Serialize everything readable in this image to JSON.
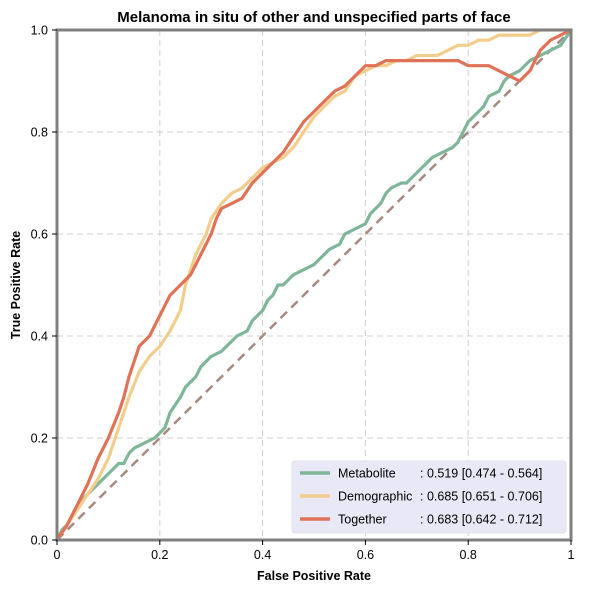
{
  "chart_data": {
    "type": "line",
    "title": "Melanoma in situ of other and unspecified parts of face",
    "xlabel": "False Positive Rate",
    "ylabel": "True Positive Rate",
    "xlim": [
      0,
      1
    ],
    "ylim": [
      0,
      1
    ],
    "xticks": [
      "0",
      "0.2",
      "0.4",
      "0.6",
      "0.8",
      "1"
    ],
    "yticks": [
      "0.0",
      "0.2",
      "0.4",
      "0.6",
      "0.8",
      "1.0"
    ],
    "grid": true,
    "legend_position": "bottom-right",
    "chance_line": {
      "x": [
        0,
        1
      ],
      "y": [
        0,
        1
      ],
      "color": "#a68a80"
    },
    "series": [
      {
        "name": "Metabolite",
        "auc": ": 0.519 [0.474 - 0.564]",
        "color": "#7fb69a",
        "x": [
          0,
          0.01,
          0.02,
          0.03,
          0.05,
          0.07,
          0.09,
          0.1,
          0.12,
          0.13,
          0.14,
          0.15,
          0.17,
          0.19,
          0.2,
          0.21,
          0.22,
          0.24,
          0.25,
          0.27,
          0.28,
          0.3,
          0.32,
          0.33,
          0.35,
          0.37,
          0.38,
          0.4,
          0.41,
          0.42,
          0.43,
          0.44,
          0.45,
          0.46,
          0.48,
          0.5,
          0.51,
          0.53,
          0.55,
          0.56,
          0.58,
          0.6,
          0.61,
          0.63,
          0.64,
          0.65,
          0.67,
          0.68,
          0.7,
          0.72,
          0.73,
          0.75,
          0.77,
          0.78,
          0.79,
          0.8,
          0.81,
          0.82,
          0.83,
          0.84,
          0.86,
          0.87,
          0.88,
          0.9,
          0.92,
          0.94,
          0.96,
          0.98,
          1.0
        ],
        "y": [
          0,
          0.02,
          0.03,
          0.05,
          0.08,
          0.1,
          0.12,
          0.13,
          0.15,
          0.15,
          0.17,
          0.18,
          0.19,
          0.2,
          0.21,
          0.22,
          0.25,
          0.28,
          0.3,
          0.32,
          0.34,
          0.36,
          0.37,
          0.38,
          0.4,
          0.41,
          0.43,
          0.45,
          0.47,
          0.48,
          0.5,
          0.5,
          0.51,
          0.52,
          0.53,
          0.54,
          0.55,
          0.57,
          0.58,
          0.6,
          0.61,
          0.62,
          0.64,
          0.66,
          0.68,
          0.69,
          0.7,
          0.7,
          0.72,
          0.74,
          0.75,
          0.76,
          0.77,
          0.78,
          0.8,
          0.82,
          0.83,
          0.84,
          0.85,
          0.87,
          0.88,
          0.9,
          0.91,
          0.92,
          0.94,
          0.95,
          0.96,
          0.97,
          1.0
        ]
      },
      {
        "name": "Demographic",
        "auc": ": 0.685 [0.651 - 0.706]",
        "color": "#f3cd8c",
        "x": [
          0,
          0.02,
          0.04,
          0.06,
          0.08,
          0.1,
          0.12,
          0.14,
          0.16,
          0.18,
          0.2,
          0.22,
          0.24,
          0.25,
          0.27,
          0.29,
          0.3,
          0.32,
          0.34,
          0.36,
          0.38,
          0.4,
          0.42,
          0.44,
          0.46,
          0.48,
          0.5,
          0.52,
          0.54,
          0.56,
          0.58,
          0.6,
          0.62,
          0.64,
          0.66,
          0.68,
          0.7,
          0.72,
          0.74,
          0.76,
          0.78,
          0.8,
          0.82,
          0.84,
          0.86,
          0.88,
          0.9,
          0.92,
          0.94,
          0.96,
          0.98,
          1.0
        ],
        "y": [
          0,
          0.03,
          0.06,
          0.09,
          0.12,
          0.16,
          0.22,
          0.28,
          0.33,
          0.36,
          0.38,
          0.41,
          0.45,
          0.5,
          0.56,
          0.6,
          0.63,
          0.66,
          0.68,
          0.69,
          0.71,
          0.73,
          0.74,
          0.75,
          0.77,
          0.8,
          0.83,
          0.85,
          0.87,
          0.88,
          0.91,
          0.92,
          0.93,
          0.93,
          0.94,
          0.94,
          0.95,
          0.95,
          0.95,
          0.96,
          0.97,
          0.97,
          0.98,
          0.98,
          0.99,
          0.99,
          0.99,
          0.99,
          1.0,
          1.0,
          1.0,
          1.0
        ]
      },
      {
        "name": "Together",
        "auc": ": 0.683 [0.642 - 0.712]",
        "color": "#e07357",
        "x": [
          0,
          0.02,
          0.04,
          0.06,
          0.08,
          0.1,
          0.12,
          0.13,
          0.14,
          0.16,
          0.18,
          0.2,
          0.22,
          0.24,
          0.26,
          0.28,
          0.3,
          0.31,
          0.32,
          0.34,
          0.36,
          0.38,
          0.4,
          0.42,
          0.44,
          0.46,
          0.48,
          0.5,
          0.52,
          0.54,
          0.56,
          0.58,
          0.6,
          0.62,
          0.64,
          0.66,
          0.7,
          0.74,
          0.78,
          0.8,
          0.82,
          0.84,
          0.86,
          0.88,
          0.9,
          0.92,
          0.94,
          0.96,
          0.98,
          1.0
        ],
        "y": [
          0,
          0.03,
          0.07,
          0.11,
          0.16,
          0.2,
          0.25,
          0.28,
          0.32,
          0.38,
          0.4,
          0.44,
          0.48,
          0.5,
          0.52,
          0.56,
          0.6,
          0.63,
          0.65,
          0.66,
          0.67,
          0.7,
          0.72,
          0.74,
          0.76,
          0.79,
          0.82,
          0.84,
          0.86,
          0.88,
          0.89,
          0.91,
          0.93,
          0.93,
          0.94,
          0.94,
          0.94,
          0.94,
          0.94,
          0.93,
          0.93,
          0.93,
          0.92,
          0.91,
          0.9,
          0.92,
          0.96,
          0.98,
          0.99,
          1.0
        ]
      }
    ]
  }
}
